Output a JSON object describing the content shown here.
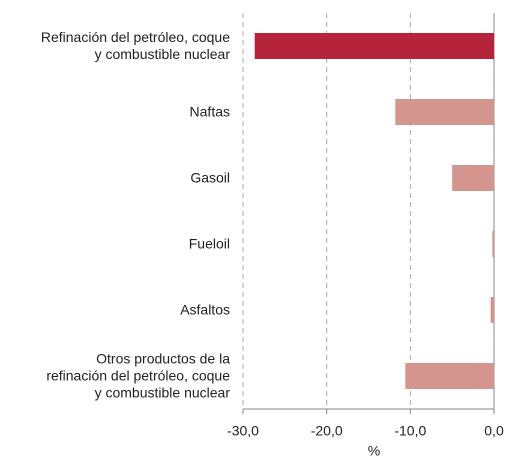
{
  "chart_data": {
    "type": "barh",
    "categories": [
      "Refinación del petróleo, coque\ny combustible nuclear",
      "Naftas",
      "Gasoil",
      "Fueloil",
      "Asfaltos",
      "Otros productos de la\nrefinación del petróleo, coque\ny combustible nuclear"
    ],
    "values": [
      -28.6,
      -11.8,
      -5.0,
      -0.2,
      -0.4,
      -10.6
    ],
    "colors": [
      "#b5243a",
      "#d4958e",
      "#d4958e",
      "#d4958e",
      "#d4958e",
      "#d4958e"
    ],
    "xlim": [
      -30,
      0
    ],
    "xticks": [
      {
        "value": -30,
        "label": "-30,0"
      },
      {
        "value": -20,
        "label": "-20,0"
      },
      {
        "value": -10,
        "label": "-10,0"
      },
      {
        "value": 0,
        "label": "0,0"
      }
    ],
    "xlabel": "%",
    "grid": true
  }
}
